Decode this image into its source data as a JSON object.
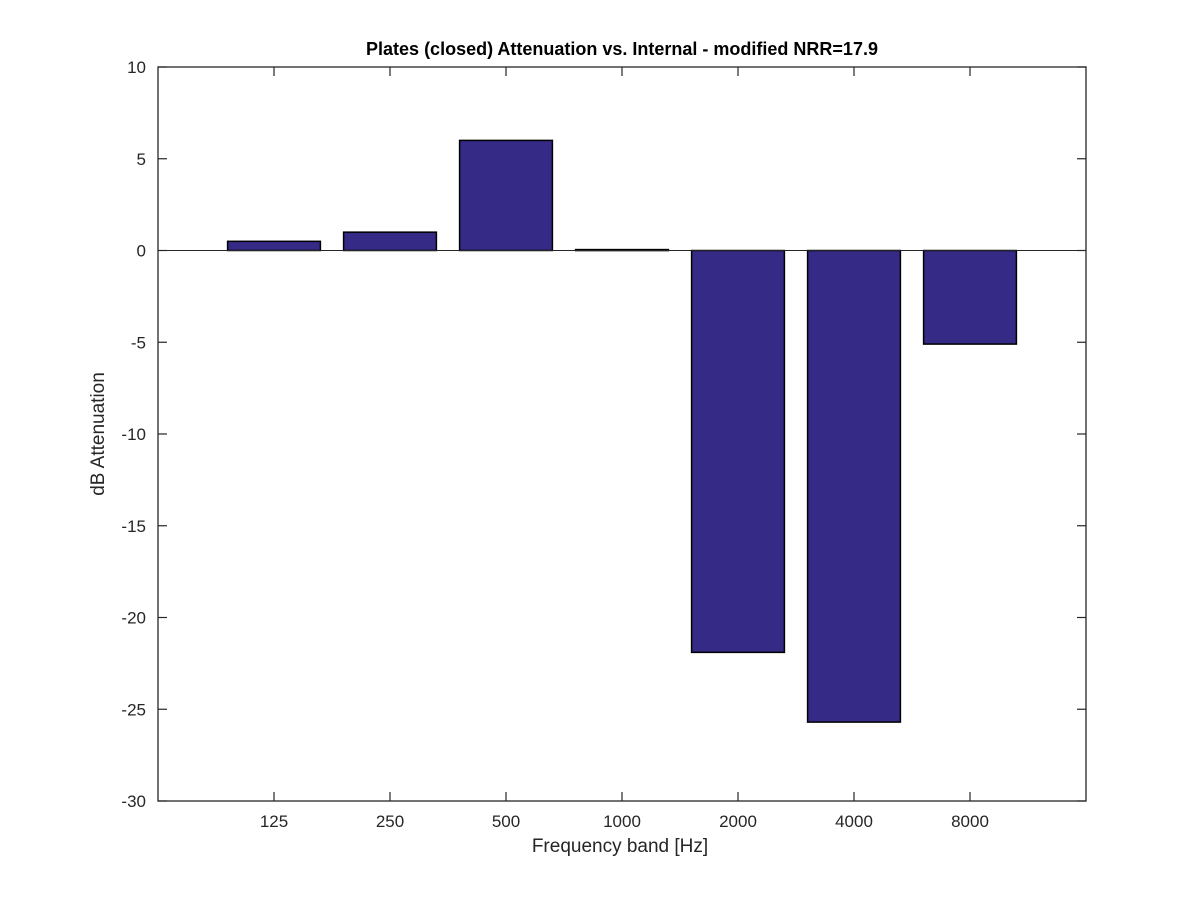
{
  "chart_data": {
    "type": "bar",
    "title": "Plates (closed) Attenuation vs. Internal - modified NRR=17.9",
    "xlabel": "Frequency band [Hz]",
    "ylabel": "dB Attenuation",
    "categories": [
      "125",
      "250",
      "500",
      "1000",
      "2000",
      "4000",
      "8000"
    ],
    "values": [
      0.5,
      1.0,
      6.0,
      0.05,
      -21.9,
      -25.7,
      -5.1
    ],
    "ylim": [
      -30,
      10
    ],
    "yticks": [
      -30,
      -25,
      -20,
      -15,
      -10,
      -5,
      0,
      5,
      10
    ],
    "ytick_labels": [
      "-30",
      "-25",
      "-20",
      "-15",
      "-10",
      "-5",
      "0",
      "5",
      "10"
    ],
    "grid": false,
    "legend": "none",
    "colors": {
      "bar_fill": "#352a86",
      "bar_edge": "#000000",
      "axis": "#262626",
      "baseline": "#262626"
    }
  }
}
